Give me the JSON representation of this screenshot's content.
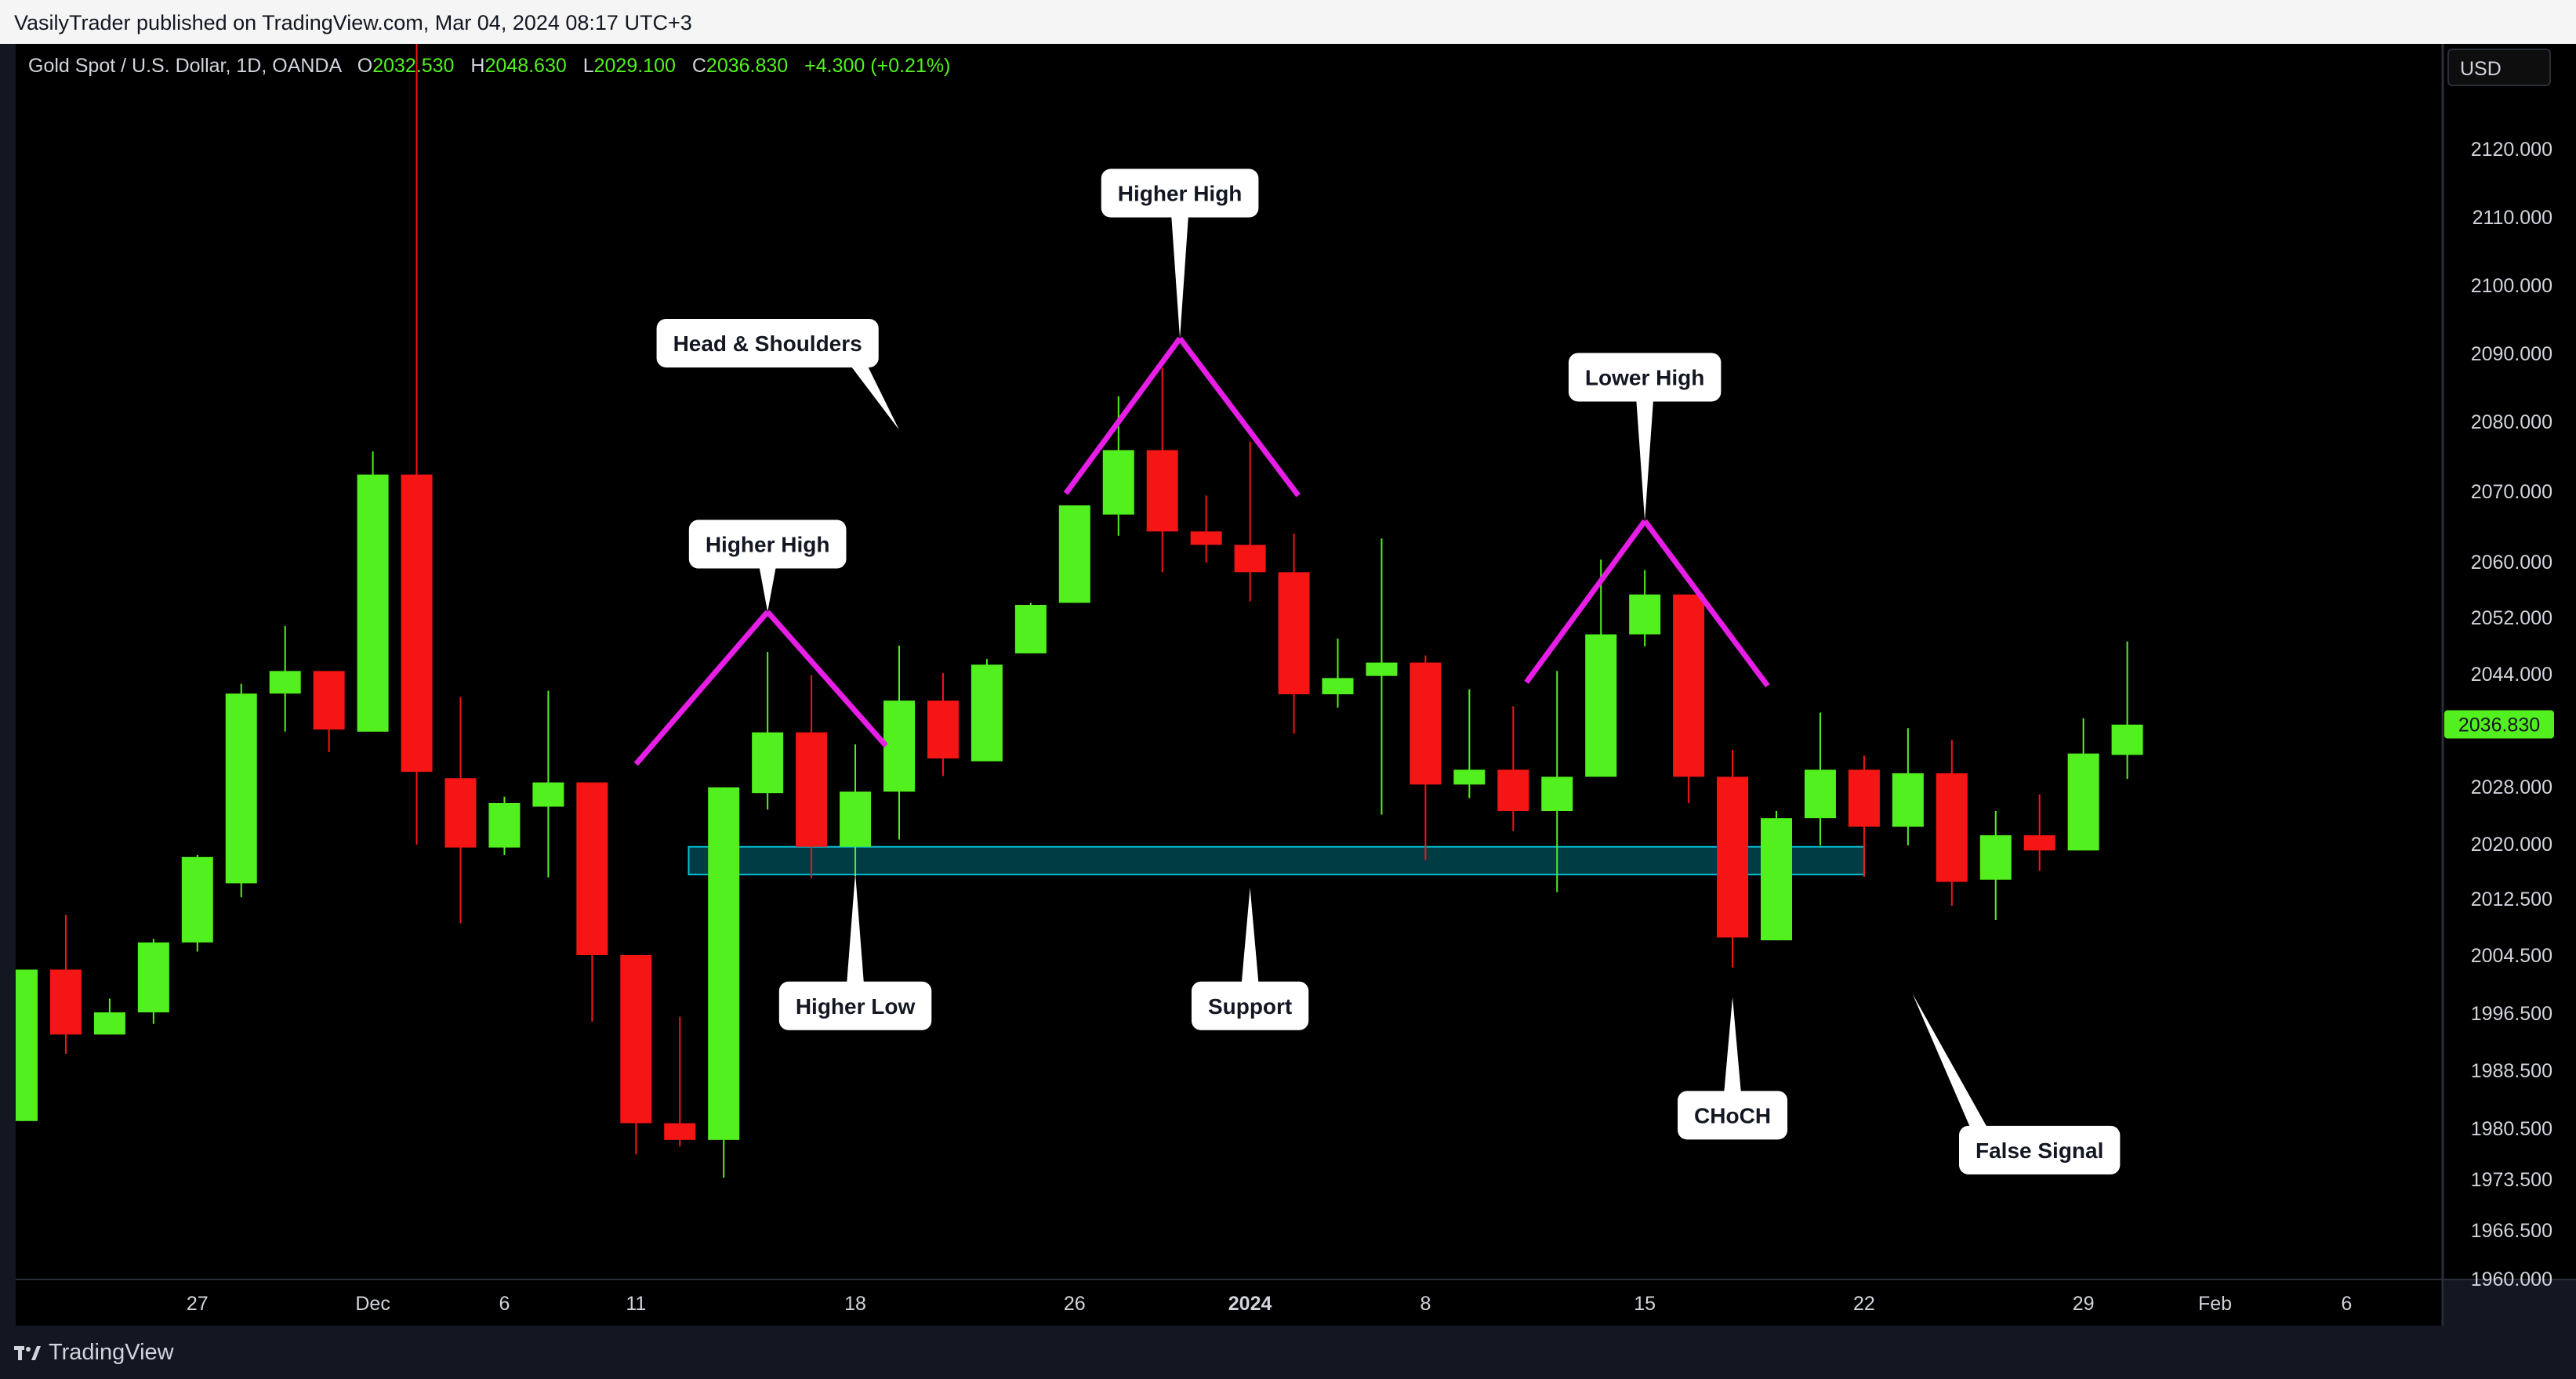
{
  "header": {
    "published": "VasilyTrader published on TradingView.com, Mar 04, 2024 08:17 UTC+3"
  },
  "legend": {
    "symbol": "Gold Spot / U.S. Dollar, 1D, OANDA",
    "o_label": "O",
    "open": "2032.530",
    "h_label": "H",
    "high": "2048.630",
    "l_label": "L",
    "low": "2029.100",
    "c_label": "C",
    "close": "2036.830",
    "change": "+4.300 (+0.21%)"
  },
  "currency": "USD",
  "footer": {
    "brand": "TradingView"
  },
  "colors": {
    "up": "#53f020",
    "down": "#f51515",
    "pattern_line": "#e61ee6",
    "support_zone": "#00bcd4",
    "price_tag": "#53f020"
  },
  "chart_data": {
    "type": "candlestick",
    "x_tick_labels": [
      {
        "label": "27",
        "index": 4
      },
      {
        "label": "Dec",
        "index": 8
      },
      {
        "label": "6",
        "index": 11
      },
      {
        "label": "11",
        "index": 14
      },
      {
        "label": "18",
        "index": 19
      },
      {
        "label": "26",
        "index": 24
      },
      {
        "label": "2024",
        "index": 28
      },
      {
        "label": "8",
        "index": 32
      },
      {
        "label": "15",
        "index": 37
      },
      {
        "label": "22",
        "index": 42
      },
      {
        "label": "29",
        "index": 47
      },
      {
        "label": "Feb",
        "index": 50
      },
      {
        "label": "6",
        "index": 53
      }
    ],
    "y_axis_labels": [
      {
        "label": "2120.000",
        "value": 2120
      },
      {
        "label": "2110.000",
        "value": 2110
      },
      {
        "label": "2100.000",
        "value": 2100
      },
      {
        "label": "2090.000",
        "value": 2090
      },
      {
        "label": "2080.000",
        "value": 2080
      },
      {
        "label": "2070.000",
        "value": 2070
      },
      {
        "label": "2060.000",
        "value": 2060
      },
      {
        "label": "2052.000",
        "value": 2052
      },
      {
        "label": "2044.000",
        "value": 2044
      },
      {
        "label": "2028.000",
        "value": 2028
      },
      {
        "label": "2020.000",
        "value": 2020
      },
      {
        "label": "2012.500",
        "value": 2012.5
      },
      {
        "label": "2004.500",
        "value": 2004.5
      },
      {
        "label": "1996.500",
        "value": 1996.5
      },
      {
        "label": "1988.500",
        "value": 1988.5
      },
      {
        "label": "1980.500",
        "value": 1980.5
      },
      {
        "label": "1973.500",
        "value": 1973.5
      },
      {
        "label": "1966.500",
        "value": 1966.5
      },
      {
        "label": "1960.000",
        "value": 1960
      }
    ],
    "ylim": [
      1960,
      2130
    ],
    "last_price": {
      "label": "2036.830",
      "value": 2036.83
    },
    "candles": [
      {
        "i": 0,
        "o": 1981.5,
        "h": 2002.5,
        "l": 1981.5,
        "c": 2002.5
      },
      {
        "i": 1,
        "o": 2002.5,
        "h": 2010.2,
        "l": 1990.8,
        "c": 1993.5
      },
      {
        "i": 2,
        "o": 1993.5,
        "h": 1998.5,
        "l": 1993.5,
        "c": 1996.6
      },
      {
        "i": 3,
        "o": 1996.6,
        "h": 2006.8,
        "l": 1995.0,
        "c": 2006.3
      },
      {
        "i": 4,
        "o": 2006.3,
        "h": 2018.5,
        "l": 2005.0,
        "c": 2018.2
      },
      {
        "i": 5,
        "o": 2014.6,
        "h": 2042.6,
        "l": 2012.7,
        "c": 2041.2
      },
      {
        "i": 6,
        "o": 2041.2,
        "h": 2050.8,
        "l": 2035.8,
        "c": 2044.4
      },
      {
        "i": 7,
        "o": 2044.4,
        "h": 2044.4,
        "l": 2032.9,
        "c": 2036.1
      },
      {
        "i": 8,
        "o": 2035.8,
        "h": 2075.7,
        "l": 2035.8,
        "c": 2072.4
      },
      {
        "i": 9,
        "o": 2072.4,
        "h": 2135.0,
        "l": 2019.9,
        "c": 2030.1
      },
      {
        "i": 10,
        "o": 2029.2,
        "h": 2040.7,
        "l": 2009.0,
        "c": 2019.5
      },
      {
        "i": 11,
        "o": 2019.5,
        "h": 2026.6,
        "l": 2018.5,
        "c": 2025.7
      },
      {
        "i": 12,
        "o": 2025.2,
        "h": 2041.6,
        "l": 2015.4,
        "c": 2028.6
      },
      {
        "i": 13,
        "o": 2028.6,
        "h": 2028.6,
        "l": 1995.3,
        "c": 2004.5
      },
      {
        "i": 14,
        "o": 2004.5,
        "h": 2004.5,
        "l": 1976.9,
        "c": 1981.2
      },
      {
        "i": 15,
        "o": 1981.2,
        "h": 1996.0,
        "l": 1978.0,
        "c": 1978.9
      },
      {
        "i": 16,
        "o": 1978.9,
        "h": 2027.9,
        "l": 1973.7,
        "c": 2027.9
      },
      {
        "i": 17,
        "o": 2027.1,
        "h": 2047.1,
        "l": 2024.8,
        "c": 2035.7
      },
      {
        "i": 18,
        "o": 2035.7,
        "h": 2043.8,
        "l": 2015.3,
        "c": 2019.6
      },
      {
        "i": 19,
        "o": 2019.6,
        "h": 2034.0,
        "l": 2015.6,
        "c": 2027.3
      },
      {
        "i": 20,
        "o": 2027.3,
        "h": 2048.0,
        "l": 2020.6,
        "c": 2040.2
      },
      {
        "i": 21,
        "o": 2040.2,
        "h": 2044.1,
        "l": 2029.5,
        "c": 2032.0
      },
      {
        "i": 22,
        "o": 2031.6,
        "h": 2046.1,
        "l": 2031.6,
        "c": 2045.3
      },
      {
        "i": 23,
        "o": 2046.9,
        "h": 2054.1,
        "l": 2046.9,
        "c": 2053.8
      },
      {
        "i": 24,
        "o": 2054.1,
        "h": 2068.0,
        "l": 2054.1,
        "c": 2068.0
      },
      {
        "i": 25,
        "o": 2066.7,
        "h": 2083.7,
        "l": 2063.7,
        "c": 2075.9
      },
      {
        "i": 26,
        "o": 2075.9,
        "h": 2087.9,
        "l": 2058.5,
        "c": 2064.3
      },
      {
        "i": 27,
        "o": 2064.3,
        "h": 2069.4,
        "l": 2059.9,
        "c": 2062.4
      },
      {
        "i": 28,
        "o": 2062.4,
        "h": 2077.1,
        "l": 2054.3,
        "c": 2058.5
      },
      {
        "i": 29,
        "o": 2058.5,
        "h": 2064.0,
        "l": 2035.5,
        "c": 2041.1
      },
      {
        "i": 30,
        "o": 2041.1,
        "h": 2049.0,
        "l": 2039.2,
        "c": 2043.4
      },
      {
        "i": 31,
        "o": 2043.7,
        "h": 2063.3,
        "l": 2024.1,
        "c": 2045.6
      },
      {
        "i": 32,
        "o": 2045.6,
        "h": 2046.6,
        "l": 2017.8,
        "c": 2028.3
      },
      {
        "i": 33,
        "o": 2028.3,
        "h": 2041.8,
        "l": 2026.4,
        "c": 2030.4
      },
      {
        "i": 34,
        "o": 2030.4,
        "h": 2039.4,
        "l": 2021.8,
        "c": 2024.6
      },
      {
        "i": 35,
        "o": 2024.6,
        "h": 2044.4,
        "l": 2013.4,
        "c": 2029.4
      },
      {
        "i": 36,
        "o": 2029.4,
        "h": 2060.3,
        "l": 2029.4,
        "c": 2049.6
      },
      {
        "i": 37,
        "o": 2049.6,
        "h": 2058.8,
        "l": 2047.9,
        "c": 2055.3
      },
      {
        "i": 38,
        "o": 2055.3,
        "h": 2055.3,
        "l": 2025.7,
        "c": 2029.4
      },
      {
        "i": 39,
        "o": 2029.4,
        "h": 2033.2,
        "l": 2002.8,
        "c": 2007.0
      },
      {
        "i": 40,
        "o": 2006.6,
        "h": 2024.6,
        "l": 2006.6,
        "c": 2023.6
      },
      {
        "i": 41,
        "o": 2023.6,
        "h": 2038.5,
        "l": 2019.8,
        "c": 2030.4
      },
      {
        "i": 42,
        "o": 2030.4,
        "h": 2032.4,
        "l": 2015.5,
        "c": 2022.4
      },
      {
        "i": 43,
        "o": 2022.4,
        "h": 2036.3,
        "l": 2019.8,
        "c": 2029.9
      },
      {
        "i": 44,
        "o": 2029.9,
        "h": 2034.6,
        "l": 2011.5,
        "c": 2014.8
      },
      {
        "i": 45,
        "o": 2015.1,
        "h": 2024.6,
        "l": 2009.5,
        "c": 2021.2
      },
      {
        "i": 46,
        "o": 2021.2,
        "h": 2026.9,
        "l": 2016.3,
        "c": 2019.1
      },
      {
        "i": 47,
        "o": 2019.1,
        "h": 2037.7,
        "l": 2019.1,
        "c": 2032.7
      },
      {
        "i": 48,
        "o": 2032.5,
        "h": 2048.6,
        "l": 2029.1,
        "c": 2036.8
      }
    ],
    "support_zone": {
      "x_start": 15.2,
      "x_end": 42.0,
      "y_low": 2015.8,
      "y_high": 2019.6
    },
    "pattern_lines": [
      {
        "x1": 14.0,
        "y1": 2031.2,
        "x2": 17.0,
        "y2": 2052.8
      },
      {
        "x1": 17.0,
        "y1": 2052.8,
        "x2": 19.7,
        "y2": 2033.8
      },
      {
        "x1": 23.8,
        "y1": 2069.7,
        "x2": 26.4,
        "y2": 2092.2
      },
      {
        "x1": 26.4,
        "y1": 2092.2,
        "x2": 29.1,
        "y2": 2069.4
      },
      {
        "x1": 34.3,
        "y1": 2042.8,
        "x2": 37.0,
        "y2": 2065.8
      },
      {
        "x1": 37.0,
        "y1": 2065.8,
        "x2": 39.8,
        "y2": 2042.3
      }
    ],
    "annotations": [
      {
        "text": "Head & Shoulders",
        "x": 17.0,
        "y": 2091.5,
        "pointer": {
          "x": 20.0,
          "y": 2078.8
        }
      },
      {
        "text": "Higher High",
        "x": 17.0,
        "y": 2062.5,
        "pointer": {
          "x": 17.0,
          "y": 2052.8
        }
      },
      {
        "text": "Higher High",
        "x": 26.4,
        "y": 2113.5,
        "pointer": {
          "x": 26.4,
          "y": 2092.2
        }
      },
      {
        "text": "Lower High",
        "x": 37.0,
        "y": 2086.5,
        "pointer": {
          "x": 37.0,
          "y": 2065.8
        }
      },
      {
        "text": "Higher Low",
        "x": 19.0,
        "y": 1997.5,
        "pointer": {
          "x": 19.0,
          "y": 2016.0
        }
      },
      {
        "text": "Support",
        "x": 28.0,
        "y": 1997.5,
        "pointer": {
          "x": 28.0,
          "y": 2014.0
        }
      },
      {
        "text": "CHoCH",
        "x": 39.0,
        "y": 1982.3,
        "pointer": {
          "x": 39.0,
          "y": 1998.7
        }
      },
      {
        "text": "False Signal",
        "x": 46.0,
        "y": 1977.5,
        "pointer": {
          "x": 43.1,
          "y": 1999.2
        }
      }
    ]
  }
}
